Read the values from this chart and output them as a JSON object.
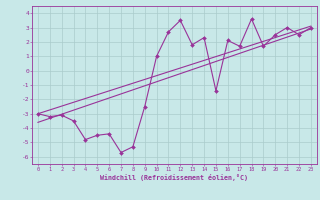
{
  "x_data": [
    0,
    1,
    2,
    3,
    4,
    5,
    6,
    7,
    8,
    9,
    10,
    11,
    12,
    13,
    14,
    15,
    16,
    17,
    18,
    19,
    20,
    21,
    22,
    23
  ],
  "y_scattered": [
    -3.0,
    -3.2,
    -3.1,
    -3.5,
    -4.8,
    -4.5,
    -4.4,
    -5.7,
    -5.3,
    -2.5,
    1.0,
    2.7,
    3.5,
    1.8,
    2.3,
    -1.4,
    2.1,
    1.7,
    3.6,
    1.7,
    2.5,
    3.0,
    2.5,
    3.0
  ],
  "regression_line1_x": [
    0,
    23
  ],
  "regression_line1_y": [
    -3.0,
    3.1
  ],
  "regression_line2_x": [
    0,
    23
  ],
  "regression_line2_y": [
    -3.6,
    2.9
  ],
  "line_color": "#993399",
  "bg_color": "#c8e8e8",
  "grid_color": "#aacccc",
  "xlabel": "Windchill (Refroidissement éolien,°C)",
  "xlim": [
    -0.5,
    23.5
  ],
  "ylim": [
    -6.5,
    4.5
  ],
  "yticks": [
    -6,
    -5,
    -4,
    -3,
    -2,
    -1,
    0,
    1,
    2,
    3,
    4
  ],
  "xticks": [
    0,
    1,
    2,
    3,
    4,
    5,
    6,
    7,
    8,
    9,
    10,
    11,
    12,
    13,
    14,
    15,
    16,
    17,
    18,
    19,
    20,
    21,
    22,
    23
  ]
}
